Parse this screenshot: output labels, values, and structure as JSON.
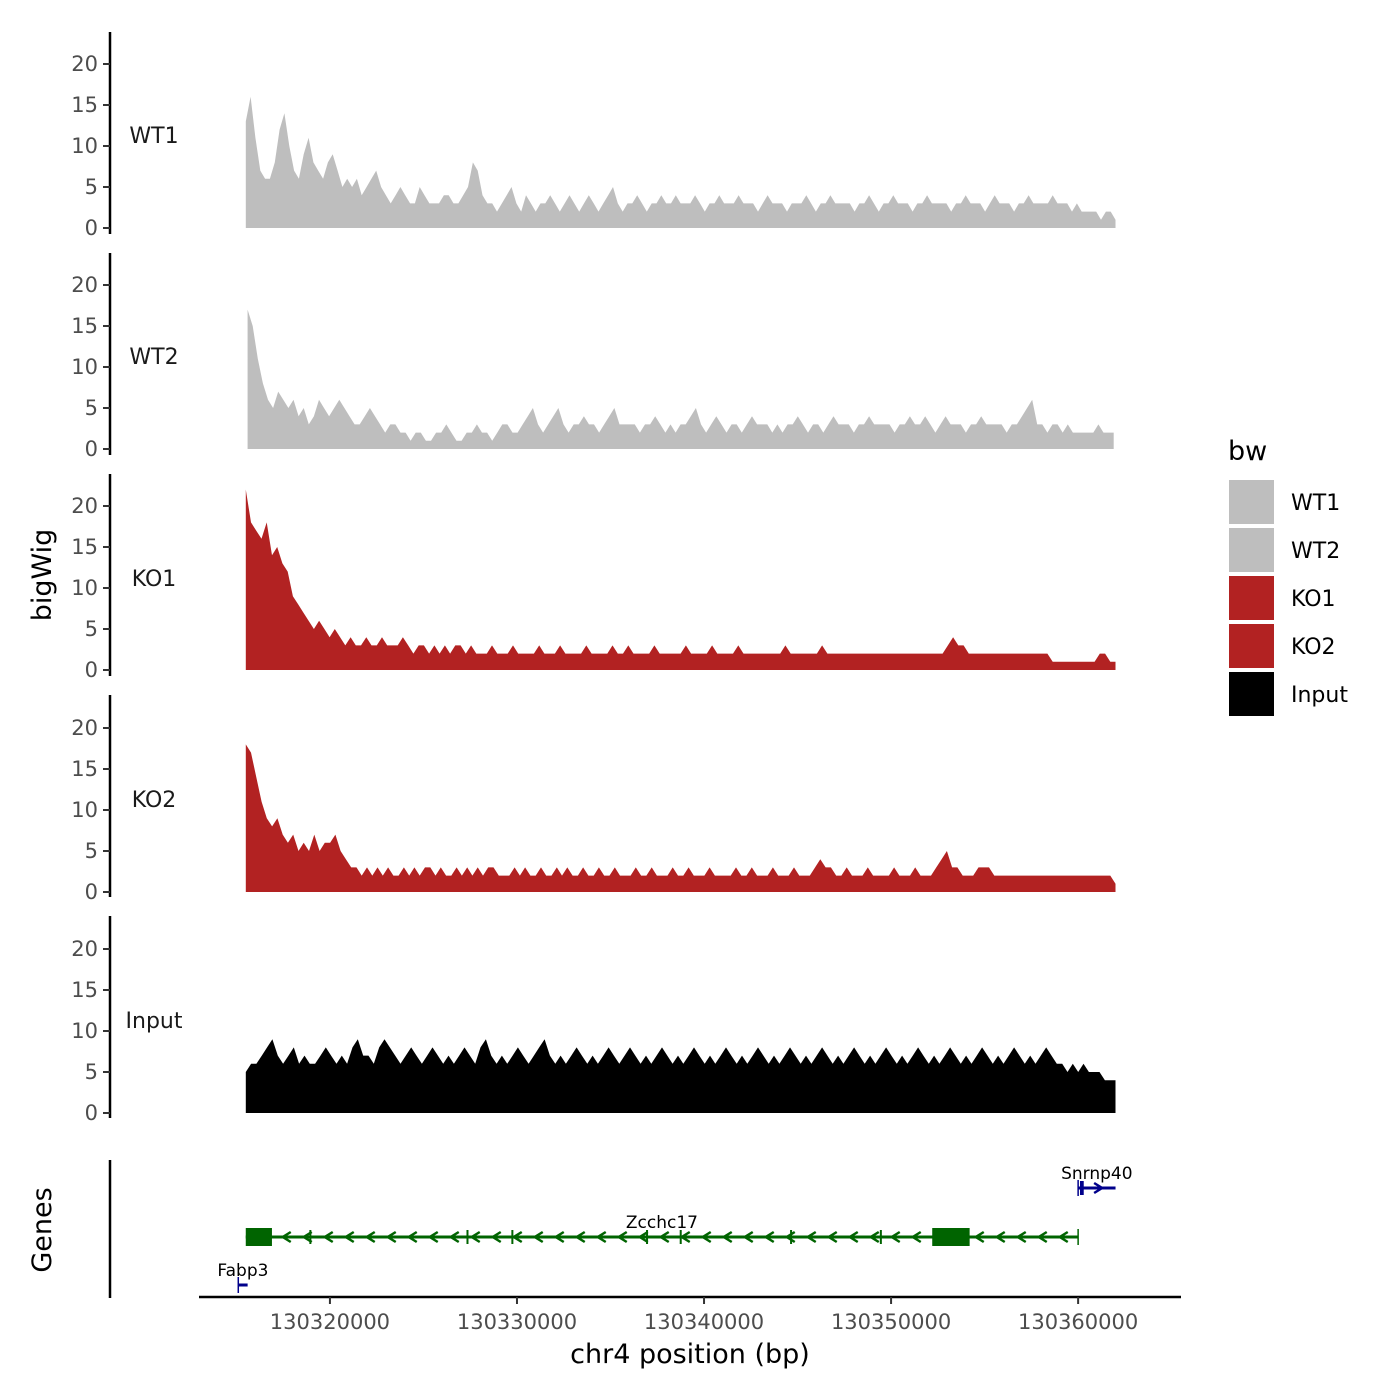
{
  "chart_data": {
    "type": "area",
    "title": "",
    "ylabel": "bigWig",
    "xlabel": "chr4 position (bp)",
    "gene_track_label": "Genes",
    "xlim": [
      130313000,
      130365500
    ],
    "ylim": [
      0,
      24
    ],
    "y_ticks": [
      0,
      5,
      10,
      15,
      20
    ],
    "x_ticks": [
      130320000,
      130330000,
      130340000,
      130350000,
      130360000
    ],
    "x_tick_labels": [
      "130320000",
      "130330000",
      "130340000",
      "130350000",
      "130360000"
    ],
    "legend": {
      "title": "bw",
      "position": "right",
      "entries": [
        {
          "label": "WT1",
          "color": "#bebebe"
        },
        {
          "label": "WT2",
          "color": "#bebebe"
        },
        {
          "label": "KO1",
          "color": "#b22222"
        },
        {
          "label": "KO2",
          "color": "#b22222"
        },
        {
          "label": "Input",
          "color": "#000000"
        }
      ]
    },
    "series": [
      {
        "name": "WT1",
        "color": "#bebebe",
        "x_start": 130315500,
        "x_end": 130362000,
        "values": [
          13,
          16,
          11,
          7,
          6,
          6,
          8,
          12,
          14,
          10,
          7,
          6,
          9,
          11,
          8,
          7,
          6,
          8,
          9,
          7,
          5,
          6,
          5,
          6,
          4,
          5,
          6,
          7,
          5,
          4,
          3,
          4,
          5,
          4,
          3,
          3,
          5,
          4,
          3,
          3,
          3,
          4,
          4,
          3,
          3,
          4,
          5,
          8,
          7,
          4,
          3,
          3,
          2,
          3,
          4,
          5,
          3,
          2,
          4,
          3,
          2,
          3,
          3,
          4,
          3,
          2,
          3,
          4,
          3,
          2,
          3,
          4,
          3,
          2,
          3,
          4,
          5,
          3,
          2,
          3,
          3,
          4,
          3,
          2,
          3,
          3,
          4,
          3,
          3,
          4,
          3,
          3,
          3,
          4,
          3,
          2,
          3,
          3,
          4,
          3,
          3,
          3,
          4,
          3,
          3,
          3,
          2,
          3,
          4,
          3,
          3,
          3,
          2,
          3,
          3,
          3,
          4,
          3,
          2,
          3,
          3,
          4,
          3,
          3,
          3,
          3,
          2,
          3,
          3,
          4,
          3,
          2,
          3,
          3,
          4,
          3,
          3,
          3,
          2,
          3,
          3,
          4,
          3,
          3,
          3,
          3,
          2,
          3,
          3,
          4,
          3,
          3,
          3,
          2,
          3,
          4,
          3,
          3,
          3,
          2,
          3,
          3,
          4,
          3,
          3,
          3,
          3,
          4,
          3,
          3,
          3,
          2,
          3,
          2,
          2,
          2,
          2,
          1,
          2,
          2,
          1
        ]
      },
      {
        "name": "WT2",
        "color": "#bebebe",
        "x_start": 130315600,
        "x_end": 130361900,
        "values": [
          17,
          15,
          11,
          8,
          6,
          5,
          7,
          6,
          5,
          6,
          4,
          5,
          3,
          4,
          6,
          5,
          4,
          5,
          6,
          5,
          4,
          3,
          3,
          4,
          5,
          4,
          3,
          2,
          3,
          3,
          2,
          2,
          1,
          2,
          2,
          1,
          1,
          2,
          2,
          3,
          2,
          1,
          1,
          2,
          2,
          3,
          2,
          2,
          1,
          2,
          3,
          3,
          2,
          2,
          3,
          4,
          5,
          3,
          2,
          3,
          4,
          5,
          3,
          2,
          3,
          3,
          4,
          3,
          3,
          2,
          3,
          4,
          5,
          3,
          3,
          3,
          3,
          2,
          3,
          3,
          4,
          3,
          2,
          3,
          2,
          3,
          3,
          4,
          5,
          3,
          2,
          3,
          4,
          3,
          2,
          3,
          3,
          2,
          3,
          4,
          3,
          3,
          3,
          2,
          3,
          2,
          3,
          3,
          4,
          3,
          2,
          3,
          3,
          2,
          3,
          4,
          3,
          3,
          3,
          2,
          3,
          3,
          4,
          3,
          3,
          3,
          3,
          2,
          3,
          3,
          4,
          3,
          3,
          4,
          3,
          2,
          3,
          4,
          3,
          3,
          3,
          2,
          3,
          3,
          4,
          3,
          3,
          3,
          3,
          2,
          3,
          3,
          4,
          5,
          6,
          3,
          3,
          2,
          3,
          3,
          2,
          3,
          2,
          2,
          2,
          2,
          2,
          3,
          2,
          2,
          2
        ]
      },
      {
        "name": "KO1",
        "color": "#b22222",
        "x_start": 130315500,
        "x_end": 130362000,
        "values": [
          22,
          18,
          17,
          16,
          18,
          14,
          15,
          13,
          12,
          9,
          8,
          7,
          6,
          5,
          6,
          5,
          4,
          5,
          4,
          3,
          4,
          3,
          3,
          4,
          3,
          3,
          4,
          3,
          3,
          3,
          4,
          3,
          2,
          3,
          3,
          2,
          3,
          2,
          3,
          2,
          3,
          3,
          2,
          3,
          2,
          2,
          2,
          3,
          2,
          2,
          2,
          3,
          2,
          2,
          2,
          2,
          3,
          2,
          2,
          2,
          3,
          2,
          2,
          2,
          2,
          3,
          2,
          2,
          2,
          2,
          3,
          2,
          2,
          3,
          2,
          2,
          2,
          2,
          3,
          2,
          2,
          2,
          2,
          2,
          3,
          2,
          2,
          2,
          2,
          3,
          2,
          2,
          2,
          2,
          3,
          2,
          2,
          2,
          2,
          2,
          2,
          2,
          2,
          3,
          2,
          2,
          2,
          2,
          2,
          2,
          3,
          2,
          2,
          2,
          2,
          2,
          2,
          2,
          2,
          2,
          2,
          2,
          2,
          2,
          2,
          2,
          2,
          2,
          2,
          2,
          2,
          2,
          2,
          2,
          3,
          4,
          3,
          3,
          2,
          2,
          2,
          2,
          2,
          2,
          2,
          2,
          2,
          2,
          2,
          2,
          2,
          2,
          2,
          2,
          1,
          1,
          1,
          1,
          1,
          1,
          1,
          1,
          1,
          2,
          2,
          1,
          1
        ]
      },
      {
        "name": "KO2",
        "color": "#b22222",
        "x_start": 130315500,
        "x_end": 130362000,
        "values": [
          18,
          17,
          14,
          11,
          9,
          8,
          9,
          7,
          6,
          7,
          5,
          6,
          5,
          7,
          5,
          6,
          6,
          7,
          5,
          4,
          3,
          3,
          2,
          3,
          2,
          3,
          2,
          3,
          2,
          2,
          3,
          2,
          3,
          2,
          3,
          3,
          2,
          3,
          2,
          2,
          3,
          2,
          3,
          2,
          3,
          2,
          3,
          3,
          2,
          2,
          2,
          3,
          2,
          3,
          2,
          2,
          3,
          2,
          2,
          3,
          2,
          3,
          2,
          2,
          3,
          2,
          2,
          3,
          2,
          2,
          3,
          2,
          2,
          2,
          3,
          2,
          2,
          3,
          2,
          2,
          2,
          3,
          2,
          2,
          3,
          2,
          2,
          2,
          3,
          2,
          2,
          2,
          2,
          3,
          2,
          2,
          3,
          2,
          2,
          2,
          3,
          2,
          2,
          2,
          3,
          2,
          2,
          2,
          3,
          4,
          3,
          3,
          2,
          2,
          3,
          2,
          2,
          2,
          3,
          2,
          2,
          2,
          2,
          3,
          2,
          2,
          2,
          3,
          2,
          2,
          2,
          3,
          4,
          5,
          3,
          3,
          2,
          2,
          2,
          3,
          3,
          3,
          2,
          2,
          2,
          2,
          2,
          2,
          2,
          2,
          2,
          2,
          2,
          2,
          2,
          2,
          2,
          2,
          2,
          2,
          2,
          2,
          2,
          2,
          2,
          1
        ]
      },
      {
        "name": "Input",
        "color": "#000000",
        "x_start": 130315500,
        "x_end": 130362000,
        "values": [
          5,
          6,
          6,
          7,
          8,
          9,
          7,
          6,
          7,
          8,
          6,
          7,
          6,
          6,
          7,
          8,
          7,
          6,
          7,
          6,
          8,
          9,
          7,
          7,
          6,
          8,
          9,
          8,
          7,
          6,
          7,
          8,
          7,
          6,
          7,
          8,
          7,
          6,
          7,
          6,
          7,
          8,
          7,
          6,
          8,
          9,
          7,
          6,
          7,
          6,
          7,
          8,
          7,
          6,
          7,
          8,
          9,
          7,
          6,
          7,
          6,
          7,
          8,
          7,
          6,
          7,
          6,
          7,
          8,
          7,
          6,
          7,
          8,
          7,
          6,
          7,
          6,
          7,
          8,
          7,
          6,
          7,
          6,
          7,
          8,
          7,
          6,
          7,
          6,
          7,
          8,
          7,
          6,
          7,
          6,
          7,
          8,
          7,
          6,
          7,
          6,
          7,
          8,
          7,
          6,
          7,
          6,
          7,
          8,
          7,
          6,
          7,
          6,
          7,
          8,
          7,
          6,
          7,
          6,
          7,
          8,
          7,
          6,
          7,
          6,
          7,
          8,
          7,
          6,
          7,
          6,
          7,
          8,
          7,
          6,
          7,
          6,
          7,
          8,
          7,
          6,
          7,
          6,
          7,
          8,
          7,
          6,
          7,
          6,
          7,
          8,
          7,
          6,
          6,
          5,
          6,
          5,
          6,
          5,
          5,
          5,
          4,
          4,
          4
        ]
      }
    ],
    "genes": [
      {
        "name": "Fabp3",
        "start": 130315100,
        "end": 130315600,
        "strand": "+",
        "row": 3,
        "color": "#00008b"
      },
      {
        "name": "Zcchc17",
        "start": 130315500,
        "end": 130360000,
        "strand": "-",
        "row": 2,
        "color": "#006400",
        "exons": [
          [
            130315500,
            130316900
          ],
          [
            130318900,
            130319000
          ],
          [
            130327300,
            130327400
          ],
          [
            130329700,
            130329800
          ],
          [
            130336900,
            130337000
          ],
          [
            130338700,
            130338800
          ],
          [
            130344600,
            130344700
          ],
          [
            130349400,
            130349500
          ],
          [
            130352200,
            130354200
          ]
        ]
      },
      {
        "name": "Snrnp40",
        "start": 130360000,
        "end": 130362000,
        "strand": "+",
        "row": 1,
        "color": "#00008b",
        "exons": [
          [
            130360100,
            130360300
          ]
        ]
      }
    ]
  }
}
